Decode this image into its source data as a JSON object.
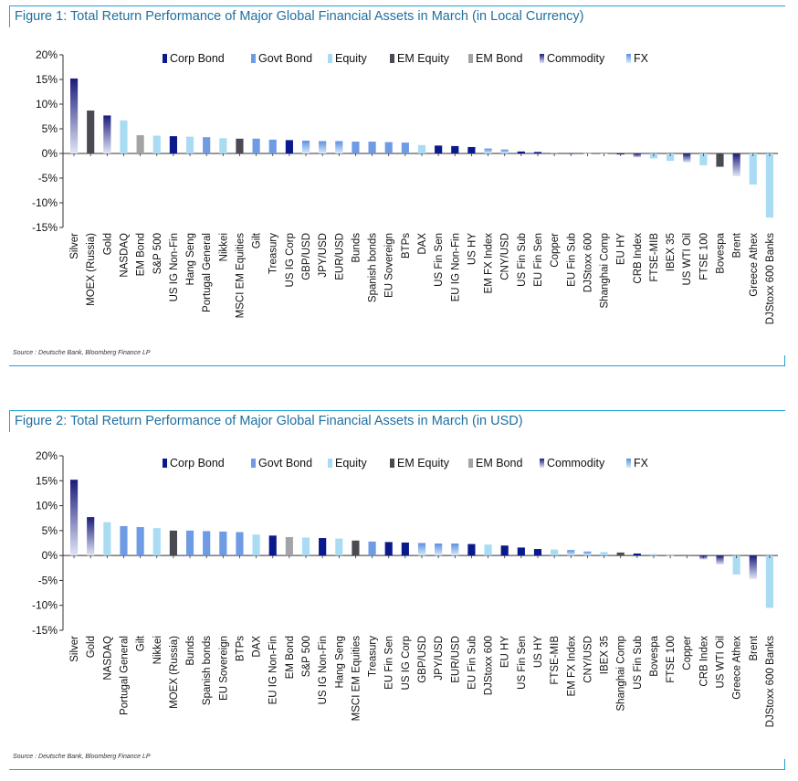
{
  "legend": [
    {
      "key": "corp",
      "label": "Corp Bond"
    },
    {
      "key": "govt",
      "label": "Govt Bond"
    },
    {
      "key": "equity",
      "label": "Equity"
    },
    {
      "key": "emequity",
      "label": "EM Equity"
    },
    {
      "key": "embond",
      "label": "EM Bond"
    },
    {
      "key": "commodity",
      "label": "Commodity"
    },
    {
      "key": "fx",
      "label": "FX"
    }
  ],
  "colors": {
    "corp": "#0a1a8c",
    "govt": "#6f9be4",
    "equity": "#a9dcf3",
    "emequity": "#4a4a52",
    "embond": "#a4a4a8",
    "commodity_dark": "#1a1c7a",
    "commodity_light": "#e2e5f7",
    "fx_dark": "#5e8fe0",
    "fx_light": "#d8ecfb",
    "frame": "#1aa3d9",
    "title": "#1f6fa0"
  },
  "figures": [
    {
      "title": "Figure 1: Total Return Performance of Major Global Financial Assets in March (in Local Currency)",
      "source": "Source : Deutsche Bank, Bloomberg Finance LP",
      "chart_data": {
        "type": "bar",
        "ylim": [
          -15,
          20
        ],
        "yticks": [
          "20%",
          "15%",
          "10%",
          "5%",
          "0%",
          "-5%",
          "-10%",
          "-15%"
        ],
        "tick_values": [
          20,
          15,
          10,
          5,
          0,
          -5,
          -10,
          -15
        ],
        "categories": [
          "Silver",
          "MOEX (Russia)",
          "Gold",
          "NASDAQ",
          "EM Bond",
          "S&P 500",
          "US IG Non-Fin",
          "Hang Seng",
          "Portugal General",
          "Nikkei",
          "MSCI EM Equities",
          "Gilt",
          "Treasury",
          "US IG Corp",
          "GBP/USD",
          "JPY/USD",
          "EUR/USD",
          "Bunds",
          "Spanish bonds",
          "EU Sovereign",
          "BTPs",
          "DAX",
          "US Fin Sen",
          "EU IG Non-Fin",
          "US HY",
          "EM FX Index",
          "CNY/USD",
          "US Fin Sub",
          "EU Fin Sen",
          "Copper",
          "EU Fin Sub",
          "DJStoxx 600",
          "Shanghai Comp",
          "EU HY",
          "CRB Index",
          "FTSE-MIB",
          "IBEX 35",
          "US WTI Oil",
          "FTSE 100",
          "Bovespa",
          "Brent",
          "Greece Athex",
          "DJStoxx 600 Banks"
        ],
        "values": [
          15.2,
          8.7,
          7.7,
          6.7,
          3.7,
          3.6,
          3.5,
          3.4,
          3.3,
          3.1,
          3.0,
          3.0,
          2.8,
          2.7,
          2.6,
          2.5,
          2.5,
          2.4,
          2.4,
          2.3,
          2.2,
          1.7,
          1.6,
          1.5,
          1.3,
          1.0,
          0.8,
          0.4,
          0.3,
          0.1,
          0.05,
          0.02,
          -0.05,
          -0.2,
          -0.8,
          -1.0,
          -1.5,
          -1.8,
          -2.4,
          -2.7,
          -4.6,
          -6.3,
          -13.0
        ],
        "groups": [
          "commodity",
          "emequity",
          "commodity",
          "equity",
          "embond",
          "equity",
          "corp",
          "equity",
          "govt",
          "equity",
          "emequity",
          "govt",
          "govt",
          "corp",
          "fx",
          "fx",
          "fx",
          "govt",
          "govt",
          "govt",
          "govt",
          "equity",
          "corp",
          "corp",
          "corp",
          "fx",
          "fx",
          "corp",
          "corp",
          "commodity",
          "corp",
          "equity",
          "equity",
          "corp",
          "commodity",
          "equity",
          "equity",
          "commodity",
          "equity",
          "emequity",
          "commodity",
          "equity",
          "equity"
        ],
        "grid": false,
        "legend_position": "top"
      }
    },
    {
      "title": "Figure 2: Total Return Performance of Major Global Financial Assets in March (in USD)",
      "source": "Source : Deutsche Bank, Bloomberg Finance LP",
      "chart_data": {
        "type": "bar",
        "ylim": [
          -15,
          20
        ],
        "yticks": [
          "20%",
          "15%",
          "10%",
          "5%",
          "0%",
          "-5%",
          "-10%",
          "-15%"
        ],
        "tick_values": [
          20,
          15,
          10,
          5,
          0,
          -5,
          -10,
          -15
        ],
        "categories": [
          "Silver",
          "Gold",
          "NASDAQ",
          "Portugal General",
          "Gilt",
          "Nikkei",
          "MOEX (Russia)",
          "Bunds",
          "Spanish bonds",
          "EU Sovereign",
          "BTPs",
          "DAX",
          "EU IG Non-Fin",
          "EM Bond",
          "S&P 500",
          "US IG Non-Fin",
          "Hang Seng",
          "MSCI EM Equities",
          "Treasury",
          "EU Fin Sen",
          "US IG Corp",
          "GBP/USD",
          "JPY/USD",
          "EUR/USD",
          "EU Fin Sub",
          "DJStoxx 600",
          "EU HY",
          "US Fin Sen",
          "US HY",
          "FTSE-MIB",
          "EM FX Index",
          "CNY/USD",
          "IBEX 35",
          "Shanghai Comp",
          "US Fin Sub",
          "Bovespa",
          "FTSE 100",
          "Copper",
          "CRB Index",
          "US WTI Oil",
          "Greece Athex",
          "Brent",
          "DJStoxx 600 Banks"
        ],
        "values": [
          15.2,
          7.7,
          6.7,
          5.9,
          5.7,
          5.5,
          5.0,
          5.0,
          4.9,
          4.8,
          4.7,
          4.2,
          4.0,
          3.7,
          3.6,
          3.5,
          3.4,
          3.0,
          2.8,
          2.7,
          2.6,
          2.5,
          2.4,
          2.4,
          2.3,
          2.2,
          2.0,
          1.6,
          1.3,
          1.2,
          1.1,
          0.8,
          0.7,
          0.6,
          0.4,
          0.3,
          0.05,
          -0.1,
          -0.8,
          -1.8,
          -3.8,
          -4.7,
          -10.5
        ],
        "groups": [
          "commodity",
          "commodity",
          "equity",
          "govt",
          "govt",
          "equity",
          "emequity",
          "govt",
          "govt",
          "govt",
          "govt",
          "equity",
          "corp",
          "embond",
          "equity",
          "corp",
          "equity",
          "emequity",
          "govt",
          "corp",
          "corp",
          "fx",
          "fx",
          "fx",
          "corp",
          "equity",
          "corp",
          "corp",
          "corp",
          "equity",
          "fx",
          "fx",
          "equity",
          "emequity",
          "corp",
          "equity",
          "equity",
          "commodity",
          "commodity",
          "commodity",
          "equity",
          "commodity",
          "equity"
        ],
        "grid": false,
        "legend_position": "top"
      }
    }
  ]
}
